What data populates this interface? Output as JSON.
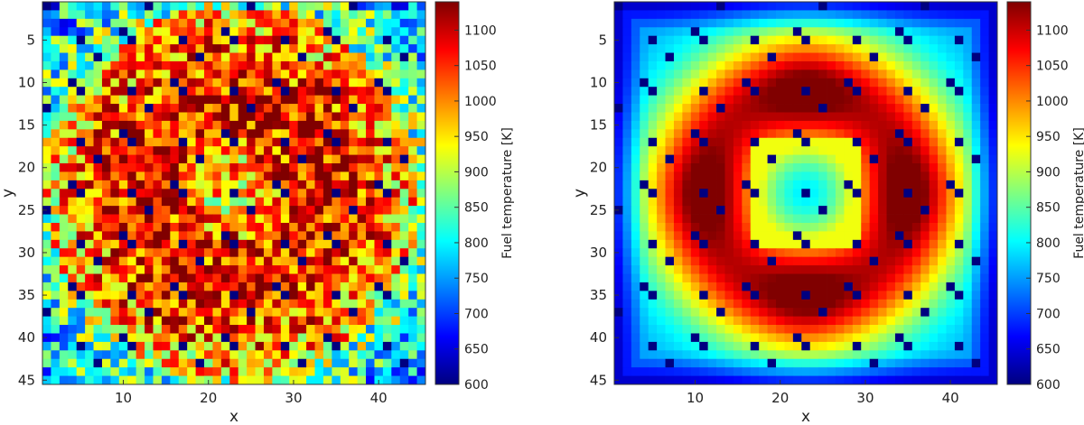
{
  "chart_data": [
    {
      "type": "heatmap",
      "title": "",
      "xlabel": "x",
      "ylabel": "y",
      "grid_size": [
        45,
        45
      ],
      "xlim": [
        0.5,
        45.5
      ],
      "ylim": [
        45.5,
        0.5
      ],
      "y_axis_reversed": true,
      "x_ticks": [
        10,
        20,
        30,
        40
      ],
      "y_ticks": [
        5,
        10,
        15,
        20,
        25,
        30,
        35,
        40,
        45
      ],
      "colormap": "jet",
      "colorbar": {
        "label": "Fuel temperature [K]",
        "range": [
          600,
          1140
        ],
        "ticks": [
          600,
          650,
          700,
          750,
          800,
          850,
          900,
          950,
          1000,
          1050,
          1100
        ],
        "placement": "right"
      },
      "description_of_field": "noisy per-pin fuel temperature; 600 K guide-tube pins on a regular lattice; hot (~1100 K) ring around a cooler core, coolest at the outer edge",
      "pattern": "noisy"
    },
    {
      "type": "heatmap",
      "title": "",
      "xlabel": "x",
      "ylabel": "y",
      "grid_size": [
        45,
        45
      ],
      "xlim": [
        0.5,
        45.5
      ],
      "ylim": [
        45.5,
        0.5
      ],
      "y_axis_reversed": true,
      "x_ticks": [
        10,
        20,
        30,
        40
      ],
      "y_ticks": [
        5,
        10,
        15,
        20,
        25,
        30,
        35,
        40,
        45
      ],
      "colormap": "jet",
      "colorbar": {
        "label": "Fuel temperature [K]",
        "range": [
          600,
          1140
        ],
        "ticks": [
          600,
          650,
          700,
          750,
          800,
          850,
          900,
          950,
          1000,
          1050,
          1100
        ],
        "placement": "right"
      },
      "description_of_field": "smooth per-pin fuel temperature; 600 K guide-tube pins on a regular lattice; four hot (~1120 K) lobes around a cooler central assembly, coolest at the corners",
      "pattern": "smooth"
    }
  ]
}
